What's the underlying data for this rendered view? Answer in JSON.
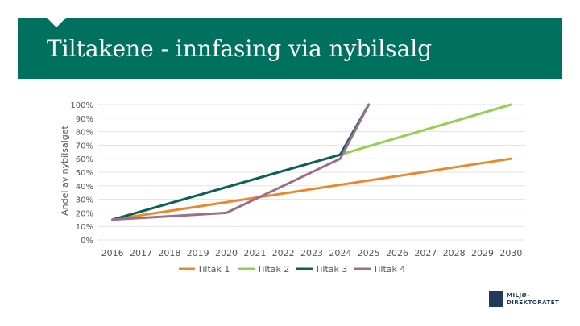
{
  "header": {
    "title": "Tiltakene - innfasing via nybilsalg",
    "banner_color": "#00705f"
  },
  "logo": {
    "line1": "MILJØ-",
    "line2": "DIREKTORATET",
    "color": "#1f3b5c"
  },
  "chart_data": {
    "type": "line",
    "title": "",
    "xlabel": "",
    "ylabel": "Andel av nybilsalget",
    "x": [
      2016,
      2017,
      2018,
      2019,
      2020,
      2021,
      2022,
      2023,
      2024,
      2025,
      2026,
      2027,
      2028,
      2029,
      2030
    ],
    "x_tick_labels": [
      "2016",
      "2017",
      "2018",
      "2019",
      "2020",
      "2021",
      "2022",
      "2023",
      "2024",
      "2025",
      "2026",
      "2027",
      "2028",
      "2029",
      "2030"
    ],
    "ylim": [
      0,
      100
    ],
    "y_tick_labels": [
      "0%",
      "10%",
      "20%",
      "30%",
      "40%",
      "50%",
      "60%",
      "70%",
      "80%",
      "90%",
      "100%"
    ],
    "y_ticks": [
      0,
      10,
      20,
      30,
      40,
      50,
      60,
      70,
      80,
      90,
      100
    ],
    "grid": true,
    "legend_position": "bottom",
    "series": [
      {
        "name": "Tiltak 1",
        "color": "#e8892a",
        "points": [
          [
            2016,
            15
          ],
          [
            2030,
            60
          ]
        ]
      },
      {
        "name": "Tiltak 2",
        "color": "#92d050",
        "points": [
          [
            2016,
            15
          ],
          [
            2024,
            63
          ],
          [
            2030,
            100
          ]
        ]
      },
      {
        "name": "Tiltak 3",
        "color": "#0e5f5c",
        "points": [
          [
            2016,
            15
          ],
          [
            2024,
            63
          ],
          [
            2025,
            100
          ]
        ]
      },
      {
        "name": "Tiltak 4",
        "color": "#9c6e8c",
        "points": [
          [
            2016,
            15
          ],
          [
            2020,
            20
          ],
          [
            2024,
            60
          ],
          [
            2025,
            100
          ]
        ]
      }
    ]
  }
}
